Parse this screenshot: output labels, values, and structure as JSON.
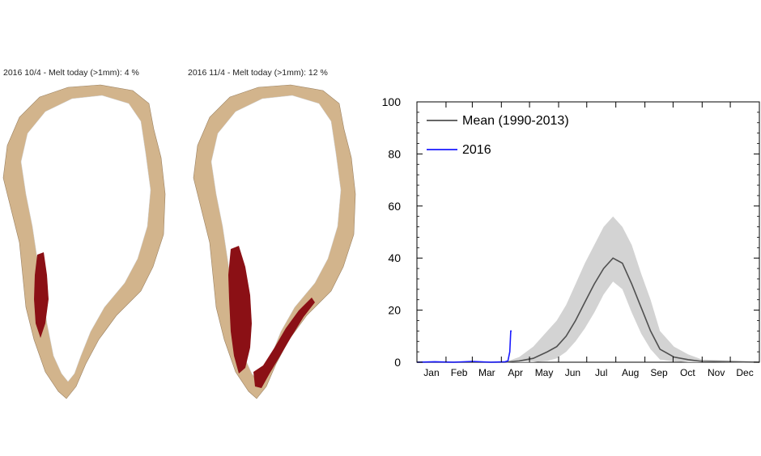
{
  "maps": [
    {
      "title": "2016 10/4  -  Melt today (>1mm): 4 %",
      "melt_percent": 4
    },
    {
      "title": "2016 11/4  -  Melt today (>1mm): 12 %",
      "melt_percent": 12
    }
  ],
  "colors": {
    "land": "#d2b48c",
    "melt": "#8b1015",
    "ice": "#ffffff",
    "mean_line": "#505050",
    "mean_band": "#d3d3d3",
    "line_2016": "#1a1aff"
  },
  "chart_data": {
    "type": "line",
    "x_unit": "day_of_year",
    "xlim": [
      1,
      366
    ],
    "ylim": [
      0,
      100
    ],
    "yticks": [
      0,
      20,
      40,
      60,
      80,
      100
    ],
    "month_labels": [
      "Jan",
      "Feb",
      "Mar",
      "Apr",
      "May",
      "Jun",
      "Jul",
      "Aug",
      "Sep",
      "Oct",
      "Nov",
      "Dec"
    ],
    "legend_position": "top-left",
    "grid": false,
    "series": [
      {
        "name": "Mean (1990-2013)",
        "x": [
          1,
          60,
          95,
          110,
          125,
          140,
          150,
          160,
          170,
          180,
          190,
          200,
          210,
          220,
          230,
          240,
          250,
          260,
          275,
          290,
          305,
          366
        ],
        "y": [
          0,
          0,
          0,
          0.5,
          1.5,
          4,
          6,
          10,
          16,
          23,
          30,
          36,
          40,
          38,
          30,
          21,
          12,
          5,
          2,
          1,
          0.3,
          0
        ],
        "band_upper": [
          0,
          0,
          0,
          2,
          6,
          12,
          16,
          22,
          30,
          38,
          45,
          52,
          56,
          52,
          45,
          34,
          24,
          12,
          6,
          3,
          1,
          0.3
        ],
        "band_lower": [
          0,
          0,
          0,
          0,
          0,
          0.5,
          1.5,
          4,
          8,
          13,
          19,
          26,
          31,
          28,
          19,
          11,
          5,
          1,
          0.3,
          0,
          0,
          0
        ]
      },
      {
        "name": "2016",
        "x": [
          1,
          20,
          40,
          60,
          80,
          95,
          98,
          100,
          101,
          102
        ],
        "y": [
          0,
          0.2,
          0,
          0.3,
          0,
          0.2,
          0.5,
          4,
          12,
          12
        ]
      }
    ]
  }
}
